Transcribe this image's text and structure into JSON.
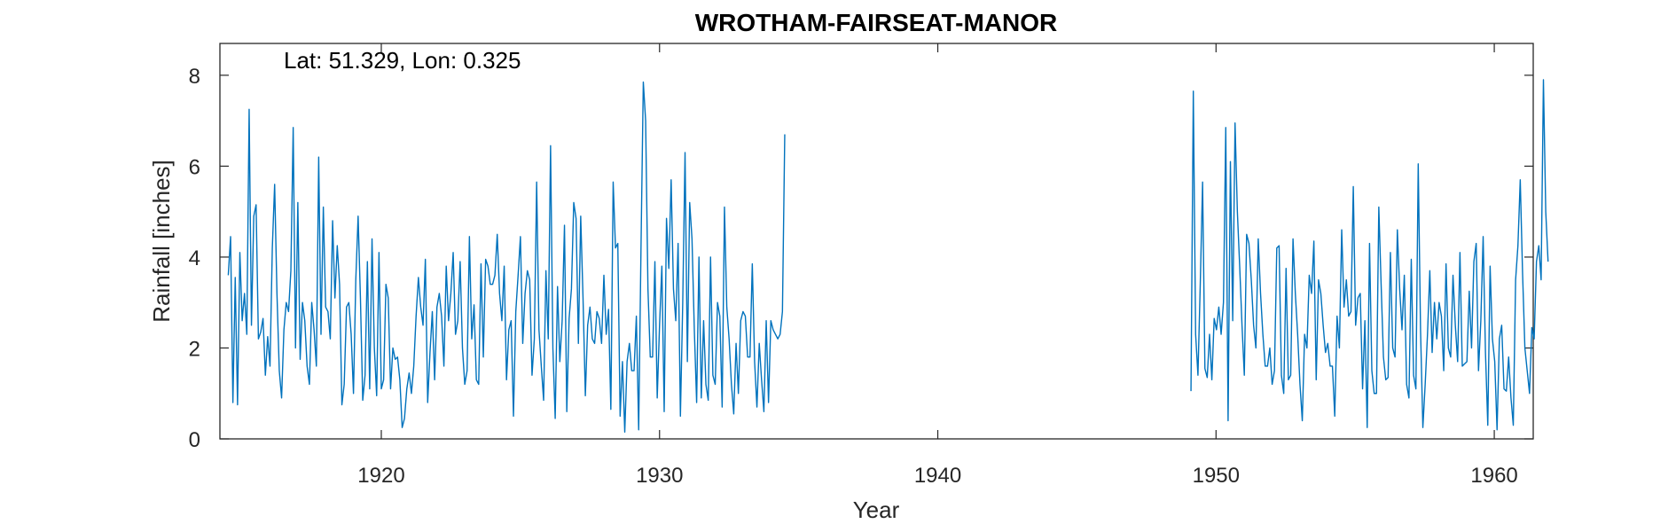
{
  "chart_data": {
    "type": "line",
    "title": "WROTHAM-FAIRSEAT-MANOR",
    "xlabel": "Year",
    "ylabel": "Rainfall [inches]",
    "annotation": "Lat: 51.329, Lon: 0.325",
    "xlim": [
      1914.2,
      1961.4
    ],
    "ylim": [
      0,
      8.7
    ],
    "xticks": [
      1920,
      1930,
      1940,
      1950,
      1960
    ],
    "yticks": [
      0,
      2,
      4,
      6,
      8
    ],
    "grid": false,
    "line_color": "#0072BD",
    "series": [
      {
        "segments": [
          {
            "x_start": 1914.5,
            "x_step": 0.0833333,
            "values": [
              3.6,
              4.45,
              0.8,
              3.55,
              0.75,
              4.1,
              2.6,
              3.2,
              2.3,
              7.25,
              2.5,
              4.9,
              5.15,
              2.2,
              2.35,
              2.65,
              1.4,
              2.25,
              1.6,
              4.2,
              5.6,
              3.2,
              1.5,
              0.9,
              2.4,
              3.0,
              2.8,
              3.7,
              6.85,
              2.0,
              5.2,
              1.75,
              3.0,
              2.6,
              1.6,
              1.2,
              3.0,
              2.4,
              1.6,
              6.2,
              2.3,
              5.1,
              2.9,
              2.8,
              2.2,
              4.8,
              3.1,
              4.25,
              3.4,
              0.75,
              1.2,
              2.9,
              3.0,
              2.3,
              1.0,
              3.5,
              4.9,
              3.1,
              0.85,
              1.4,
              3.9,
              1.1,
              4.4,
              2.0,
              0.95,
              4.1,
              1.1,
              1.3,
              3.4,
              3.1,
              1.1,
              2.0,
              1.75,
              1.8,
              1.3,
              0.25,
              0.45,
              1.1,
              1.45,
              1.0,
              1.6,
              2.7,
              3.55,
              2.9,
              2.5,
              3.95,
              0.8,
              1.9,
              2.8,
              1.3,
              2.9,
              3.2,
              2.7,
              1.6,
              3.8,
              2.6,
              3.2,
              4.1,
              2.3,
              2.6,
              3.9,
              2.0,
              1.2,
              1.5,
              4.45,
              2.2,
              2.95,
              1.3,
              1.2,
              3.85,
              1.8,
              3.95,
              3.8,
              3.4,
              3.4,
              3.6,
              4.5,
              3.2,
              2.6,
              3.8,
              1.3,
              2.4,
              2.6,
              0.5,
              2.8,
              3.6,
              4.45,
              2.1,
              3.2,
              3.7,
              3.5,
              1.4,
              2.2,
              5.65,
              2.4,
              1.6,
              0.85,
              3.7,
              2.2,
              6.45,
              2.0,
              0.45,
              3.35,
              1.7,
              2.6,
              4.7,
              0.6,
              2.65,
              3.3,
              5.2,
              4.85,
              2.1,
              4.9,
              3.1,
              0.95,
              2.5,
              2.9,
              2.2,
              2.1,
              2.8,
              2.65,
              2.1,
              3.6,
              2.3,
              2.85,
              0.65,
              5.65,
              4.2,
              4.3,
              0.5,
              1.7,
              0.15,
              1.7,
              2.1,
              1.5,
              1.5,
              2.7,
              0.2,
              4.2,
              7.85,
              7.0,
              3.3,
              1.8,
              1.8,
              3.9,
              0.9,
              2.5,
              3.8,
              0.6,
              4.85,
              3.75,
              5.7,
              3.3,
              2.6,
              4.3,
              0.5,
              3.0,
              6.3,
              1.7,
              5.2,
              4.4,
              2.4,
              0.8,
              4.0,
              0.9,
              2.6,
              1.2,
              0.85,
              4.0,
              1.4,
              1.2,
              3.0,
              2.7,
              0.7,
              5.1,
              2.9,
              2.2,
              1.2,
              0.55,
              2.1,
              1.0,
              2.6,
              2.8,
              2.7,
              1.8,
              1.8,
              3.85,
              1.7,
              0.7,
              2.1,
              1.3,
              0.6,
              2.6,
              0.8,
              2.6,
              2.4,
              2.3,
              2.2,
              2.3,
              2.8,
              6.7
            ]
          },
          {
            "x_start": 1949.1,
            "x_step": 0.0833333,
            "values": [
              1.05,
              7.65,
              2.3,
              1.4,
              3.4,
              5.65,
              1.55,
              1.35,
              2.3,
              1.3,
              2.65,
              2.4,
              2.9,
              2.3,
              3.0,
              6.85,
              0.4,
              6.1,
              2.6,
              6.95,
              5.0,
              3.8,
              2.5,
              1.4,
              4.5,
              4.3,
              3.5,
              2.5,
              2.0,
              4.4,
              3.2,
              2.3,
              1.6,
              1.6,
              2.0,
              1.2,
              1.5,
              4.2,
              4.25,
              1.4,
              1.0,
              3.75,
              1.3,
              1.4,
              4.4,
              3.2,
              2.3,
              1.2,
              0.4,
              2.3,
              2.0,
              3.6,
              3.2,
              4.35,
              1.3,
              3.5,
              3.2,
              2.5,
              1.9,
              2.1,
              1.6,
              1.6,
              0.5,
              2.7,
              2.0,
              4.6,
              2.9,
              3.5,
              2.7,
              2.8,
              5.55,
              2.5,
              3.1,
              3.2,
              1.1,
              2.6,
              0.25,
              4.3,
              1.5,
              1.0,
              1.0,
              5.1,
              3.4,
              1.8,
              1.3,
              1.35,
              4.1,
              2.0,
              1.8,
              4.6,
              3.3,
              2.4,
              3.6,
              1.2,
              0.9,
              3.95,
              1.4,
              1.1,
              6.05,
              2.4,
              0.25,
              1.2,
              2.3,
              3.7,
              1.9,
              3.0,
              2.2,
              3.0,
              2.7,
              1.5,
              3.85,
              2.0,
              1.8,
              3.6,
              2.5,
              1.7,
              4.1,
              1.6,
              1.65,
              1.7,
              3.25,
              2.0,
              3.9,
              4.3,
              1.5,
              2.6,
              4.45,
              1.9,
              0.3,
              3.8,
              2.2,
              1.7,
              0.2,
              2.2,
              2.5,
              1.1,
              1.05,
              1.8,
              0.9,
              0.3,
              3.5,
              4.25,
              5.7,
              3.65,
              2.0,
              1.5,
              1.0,
              2.45,
              2.2,
              3.9,
              4.25,
              3.5,
              7.9,
              5.0,
              3.9
            ]
          }
        ]
      }
    ]
  }
}
